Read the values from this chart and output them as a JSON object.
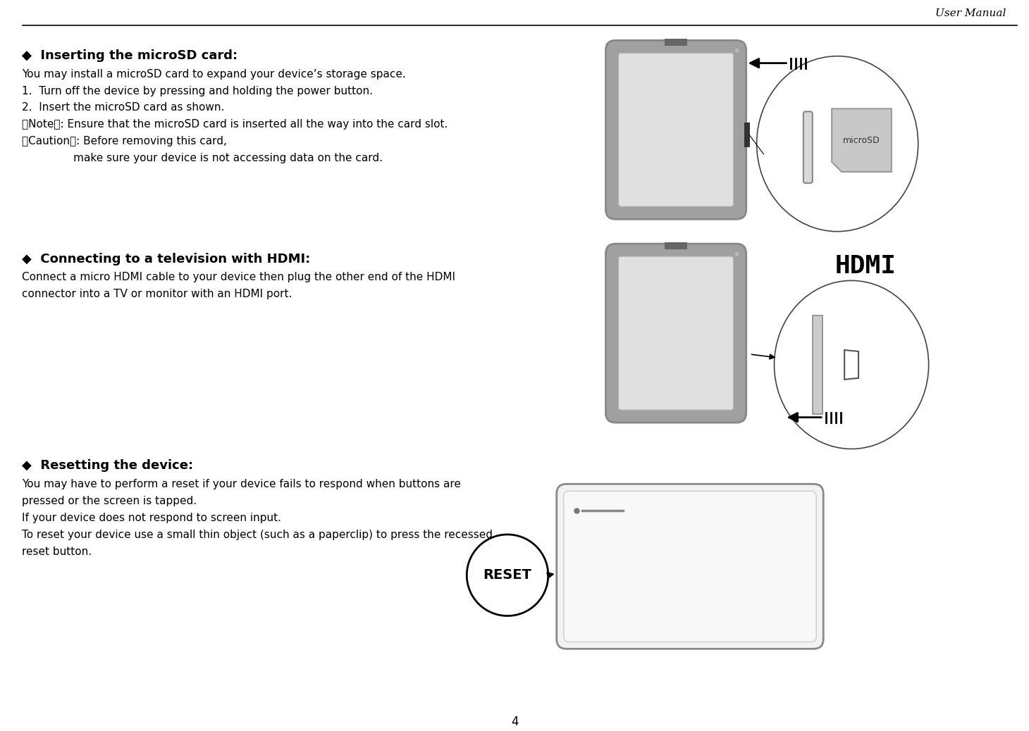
{
  "title_header": "User Manual",
  "page_number": "4",
  "bg_color": "#ffffff",
  "section1_title_bullet": "◆",
  "section1_title_text": "  Inserting the microSD card:",
  "section1_body": [
    "You may install a microSD card to expand your device’s storage space.",
    "1.  Turn off the device by pressing and holding the power button.",
    "2.  Insert the microSD card as shown.",
    "【Note】: Ensure that the microSD card is inserted all the way into the card slot.",
    "【Caution】: Before removing this card,",
    "               make sure your device is not accessing data on the card."
  ],
  "section2_title_bullet": "◆",
  "section2_title_text": "  Connecting to a television with HDMI:",
  "section2_body": [
    "Connect a micro HDMI cable to your device then plug the other end of the HDMI",
    "connector into a TV or monitor with an HDMI port."
  ],
  "section3_title_bullet": "◆",
  "section3_title_text": "  Resetting the device:",
  "section3_body": [
    "You may have to perform a reset if your device fails to respond when buttons are",
    "pressed or the screen is tapped.",
    "If your device does not respond to screen input.",
    "To reset your device use a small thin object (such as a paperclip) to press the recessed",
    "reset button."
  ],
  "tablet_fill": "#a0a0a0",
  "tablet_edge": "#888888",
  "screen_fill": "#e0e0e0",
  "screen_edge": "#b0b0b0",
  "topbar_fill": "#666666",
  "microsd_fill": "#c8c8c8",
  "microsd_edge": "#999999",
  "microsd_text": "microSD",
  "hdmi_logo": "HDmI",
  "reset_text": "RESET",
  "line_color": "#000000",
  "ellipse_edge": "#444444"
}
